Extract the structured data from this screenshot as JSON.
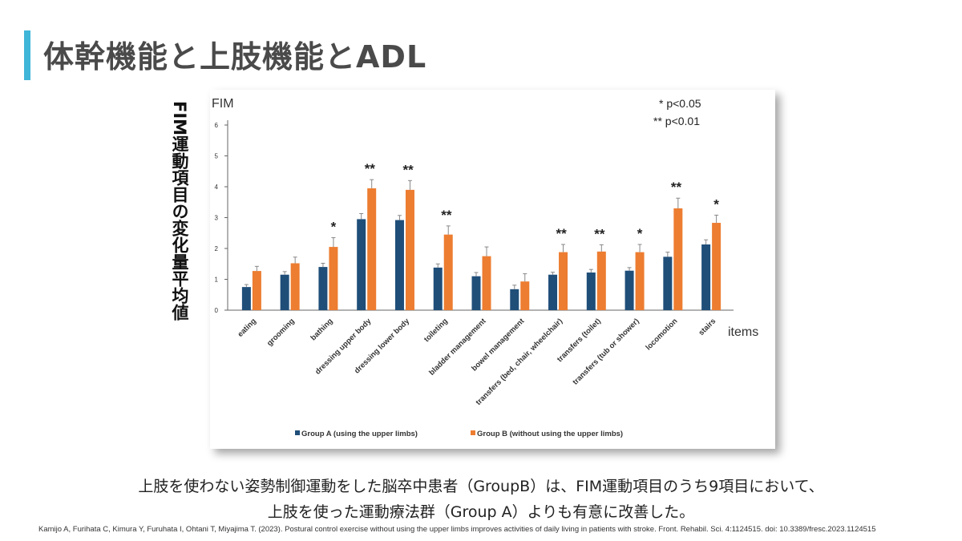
{
  "slide": {
    "title": "体幹機能と上肢機能とADL",
    "vertical_label": "FIM運動項目の変化量平均値",
    "caption_line1": "上肢を使わない姿勢制御運動をした脳卒中患者（GroupB）は、FIM運動項目のうち9項目において、",
    "caption_line2": "上肢を使った運動療法群（Group A）よりも有意に改善した。",
    "citation": "Kamijo A, Furihata C, Kimura Y, Furuhata I, Ohtani T, Miyajima T. (2023). Postural control exercise without using the upper limbs improves activities of daily living in patients with stroke. Front. Rehabil. Sci. 4:1124515. doi: 10.3389/fresc.2023.1124515"
  },
  "chart_data": {
    "type": "bar",
    "ylabel": "FIM",
    "xlabel": "items",
    "ylim": [
      0,
      6
    ],
    "yticks": [
      0,
      1,
      2,
      3,
      4,
      5,
      6
    ],
    "categories": [
      "eating",
      "grooming",
      "bathing",
      "dressing upper body",
      "dressing lower body",
      "toileting",
      "bladder management",
      "bowel management",
      "transfers (bed, chair, wheelchair)",
      "transfers (toilet)",
      "transfers (tub or shower)",
      "locomotion",
      "stairs"
    ],
    "series": [
      {
        "name": "Group A (using the upper limbs)",
        "color": "#1f4e79",
        "values": [
          0.75,
          1.15,
          1.4,
          2.95,
          2.92,
          1.38,
          1.1,
          0.68,
          1.15,
          1.22,
          1.28,
          1.73,
          2.13
        ],
        "errors": [
          0.08,
          0.1,
          0.12,
          0.18,
          0.15,
          0.12,
          0.12,
          0.13,
          0.08,
          0.1,
          0.1,
          0.15,
          0.15
        ]
      },
      {
        "name": "Group B (without using the upper limbs)",
        "color": "#ed7d31",
        "values": [
          1.27,
          1.52,
          2.05,
          3.95,
          3.9,
          2.45,
          1.75,
          0.93,
          1.88,
          1.9,
          1.88,
          3.3,
          2.83
        ],
        "errors": [
          0.15,
          0.2,
          0.3,
          0.28,
          0.3,
          0.28,
          0.3,
          0.25,
          0.25,
          0.22,
          0.25,
          0.33,
          0.25
        ]
      }
    ],
    "significance": [
      "",
      "",
      "*",
      "**",
      "**",
      "**",
      "",
      "",
      "**",
      "**",
      "*",
      "**",
      "*"
    ],
    "legend_note_1": "* p<0.05",
    "legend_note_2": "** p<0.01",
    "legend": "bottom"
  }
}
